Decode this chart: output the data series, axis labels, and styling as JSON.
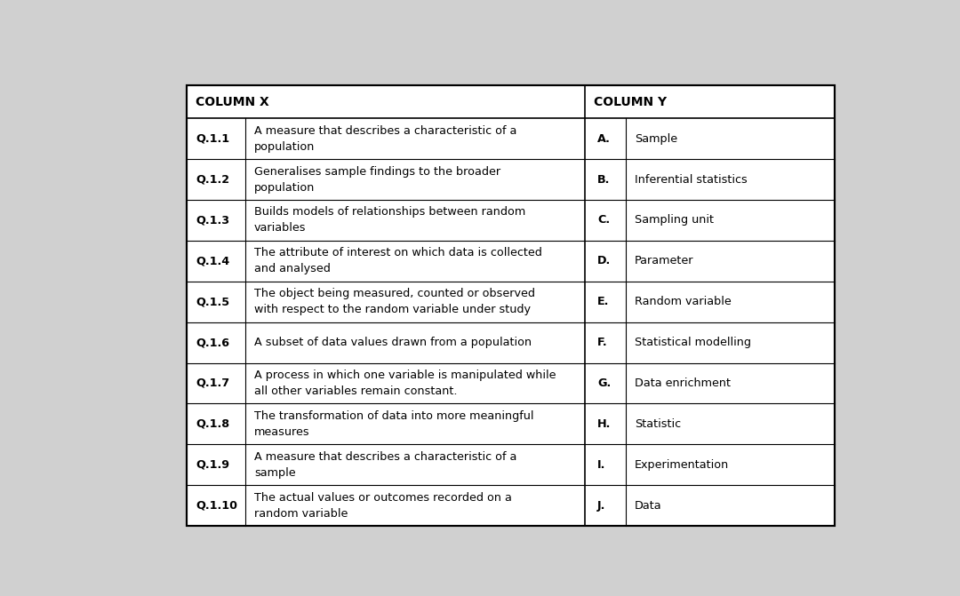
{
  "background_color": "#d0d0d0",
  "table_bg": "#ffffff",
  "border_color": "#000000",
  "header_font_size": 10,
  "cell_font_size": 9.2,
  "bold_font_size": 9.2,
  "rows": [
    {
      "q_num": "Q.1.1",
      "q_text": "A measure that describes a characteristic of a\npopulation",
      "ans_letter": "A.",
      "ans_text": "Sample"
    },
    {
      "q_num": "Q.1.2",
      "q_text": "Generalises sample findings to the broader\npopulation",
      "ans_letter": "B.",
      "ans_text": "Inferential statistics"
    },
    {
      "q_num": "Q.1.3",
      "q_text": "Builds models of relationships between random\nvariables",
      "ans_letter": "C.",
      "ans_text": "Sampling unit"
    },
    {
      "q_num": "Q.1.4",
      "q_text": "The attribute of interest on which data is collected\nand analysed",
      "ans_letter": "D.",
      "ans_text": "Parameter"
    },
    {
      "q_num": "Q.1.5",
      "q_text": "The object being measured, counted or observed\nwith respect to the random variable under study",
      "ans_letter": "E.",
      "ans_text": "Random variable"
    },
    {
      "q_num": "Q.1.6",
      "q_text": "A subset of data values drawn from a population",
      "ans_letter": "F.",
      "ans_text": "Statistical modelling"
    },
    {
      "q_num": "Q.1.7",
      "q_text": "A process in which one variable is manipulated while\nall other variables remain constant.",
      "ans_letter": "G.",
      "ans_text": "Data enrichment"
    },
    {
      "q_num": "Q.1.8",
      "q_text": "The transformation of data into more meaningful\nmeasures",
      "ans_letter": "H.",
      "ans_text": "Statistic"
    },
    {
      "q_num": "Q.1.9",
      "q_text": "A measure that describes a characteristic of a\nsample",
      "ans_letter": "I.",
      "ans_text": "Experimentation"
    },
    {
      "q_num": "Q.1.10",
      "q_text": "The actual values or outcomes recorded on a\nrandom variable",
      "ans_letter": "J.",
      "ans_text": "Data"
    }
  ],
  "col_x_header": "COLUMN X",
  "col_y_header": "COLUMN Y",
  "figsize": [
    10.8,
    6.71
  ],
  "dpi": 100
}
